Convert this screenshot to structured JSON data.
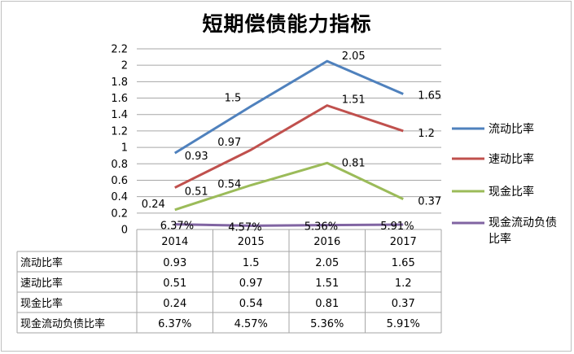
{
  "chart_data": {
    "type": "line",
    "title": "短期偿债能力指标",
    "categories": [
      "2014",
      "2015",
      "2016",
      "2017"
    ],
    "ylim": [
      0,
      2.2
    ],
    "y_ticks": [
      "0",
      "0.2",
      "0.4",
      "0.6",
      "0.8",
      "1",
      "1.2",
      "1.4",
      "1.6",
      "1.8",
      "2",
      "2.2"
    ],
    "grid": "horizontal",
    "legend_position": "right",
    "series": [
      {
        "name": "流动比率",
        "values": [
          0.93,
          1.5,
          2.05,
          1.65
        ],
        "labels": [
          "0.93",
          "1.5",
          "2.05",
          "1.65"
        ],
        "color": "#4f81bd"
      },
      {
        "name": "速动比率",
        "values": [
          0.51,
          0.97,
          1.51,
          1.2
        ],
        "labels": [
          "0.51",
          "0.97",
          "1.51",
          "1.2"
        ],
        "color": "#c0504d"
      },
      {
        "name": "现金比率",
        "values": [
          0.24,
          0.54,
          0.81,
          0.37
        ],
        "labels": [
          "0.24",
          "0.54",
          "0.81",
          "0.37"
        ],
        "color": "#9bbb59"
      },
      {
        "name": "现金流动负债比率",
        "values": [
          0.0637,
          0.0457,
          0.0536,
          0.0591
        ],
        "labels": [
          "6.37%",
          "4.57%",
          "5.36%",
          "5.91%"
        ],
        "color": "#8064a2"
      }
    ]
  }
}
